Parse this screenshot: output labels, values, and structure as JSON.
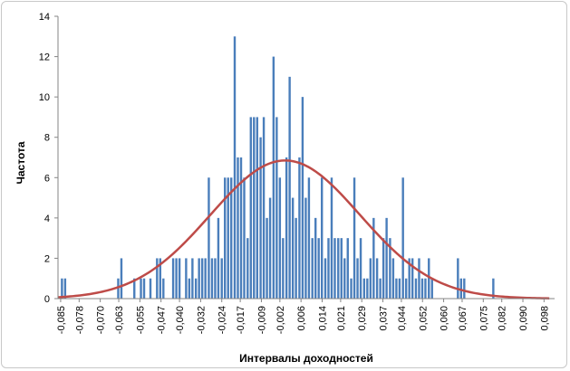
{
  "chart_data": {
    "type": "bar",
    "title": "",
    "xlabel": "Интервалы доходностей",
    "ylabel": "Частота",
    "ylim": [
      0,
      14
    ],
    "yticks": [
      0,
      2,
      4,
      6,
      8,
      10,
      12,
      14
    ],
    "xlim": [
      -0.086,
      0.102
    ],
    "xtick_labels": [
      "-0,085",
      "-0,078",
      "-0,070",
      "-0,063",
      "-0,055",
      "-0,047",
      "-0,040",
      "-0,032",
      "-0,024",
      "-0,017",
      "-0,009",
      "-0,002",
      "0,006",
      "0,014",
      "0,021",
      "0,029",
      "0,037",
      "0,044",
      "0,052",
      "0,060",
      "0,067",
      "0,075",
      "0,082",
      "0,090",
      "0,098"
    ],
    "xtick_values": [
      -0.085,
      -0.078,
      -0.07,
      -0.063,
      -0.055,
      -0.047,
      -0.04,
      -0.032,
      -0.024,
      -0.017,
      -0.009,
      -0.002,
      0.006,
      0.014,
      0.021,
      0.029,
      0.037,
      0.044,
      0.052,
      0.06,
      0.067,
      0.075,
      0.082,
      0.09,
      0.098
    ],
    "grid": false,
    "bar_color": "#4a7ebb",
    "curve_color": "#be4b48",
    "series": [
      {
        "type": "bar",
        "x": [
          -0.0845,
          -0.0833,
          -0.0632,
          -0.062,
          -0.0571,
          -0.0546,
          -0.0534,
          -0.051,
          -0.0485,
          -0.0473,
          -0.0461,
          -0.0424,
          -0.0412,
          -0.04,
          -0.0375,
          -0.0363,
          -0.0351,
          -0.0338,
          -0.0326,
          -0.0314,
          -0.0302,
          -0.0289,
          -0.0277,
          -0.0265,
          -0.0253,
          -0.024,
          -0.0228,
          -0.0216,
          -0.0204,
          -0.0191,
          -0.0179,
          -0.0167,
          -0.0155,
          -0.0142,
          -0.013,
          -0.0118,
          -0.0106,
          -0.0093,
          -0.0081,
          -0.0069,
          -0.0057,
          -0.0044,
          -0.0032,
          -0.002,
          -0.0008,
          0.0005,
          0.0017,
          0.0029,
          0.0041,
          0.0054,
          0.0066,
          0.0078,
          0.009,
          0.0103,
          0.0115,
          0.0127,
          0.0139,
          0.0152,
          0.0164,
          0.0176,
          0.0188,
          0.0201,
          0.0213,
          0.0225,
          0.0237,
          0.025,
          0.0262,
          0.0274,
          0.0286,
          0.0299,
          0.0311,
          0.0323,
          0.0335,
          0.0348,
          0.036,
          0.0372,
          0.0384,
          0.0397,
          0.0409,
          0.0421,
          0.0433,
          0.0446,
          0.0458,
          0.047,
          0.0482,
          0.0495,
          0.0507,
          0.0519,
          0.0531,
          0.0544,
          0.0556,
          0.0654,
          0.0666,
          0.0678,
          0.0788
        ],
        "values": [
          1,
          1,
          1,
          2,
          1,
          1,
          1,
          1,
          2,
          2,
          1,
          2,
          2,
          2,
          2,
          1,
          2,
          1,
          2,
          2,
          2,
          6,
          2,
          2,
          4,
          2,
          6,
          6,
          6,
          13,
          7,
          7,
          6,
          3,
          9,
          9,
          9,
          8,
          9,
          4,
          5,
          12,
          9,
          6,
          3,
          7,
          11,
          5,
          4,
          7,
          10,
          5,
          6,
          3,
          4,
          3,
          6,
          2,
          3,
          6,
          3,
          3,
          3,
          2,
          3,
          1,
          6,
          2,
          3,
          1,
          1,
          2,
          4,
          2,
          1,
          3,
          4,
          3,
          2,
          1,
          1,
          6,
          1,
          2,
          2,
          1,
          2,
          1,
          1,
          2,
          1,
          2,
          1,
          1,
          1
        ]
      },
      {
        "type": "line",
        "name": "",
        "mean": 0.0,
        "std": 0.0283,
        "peak": 6.85,
        "x_range": [
          -0.086,
          0.1
        ]
      }
    ]
  }
}
